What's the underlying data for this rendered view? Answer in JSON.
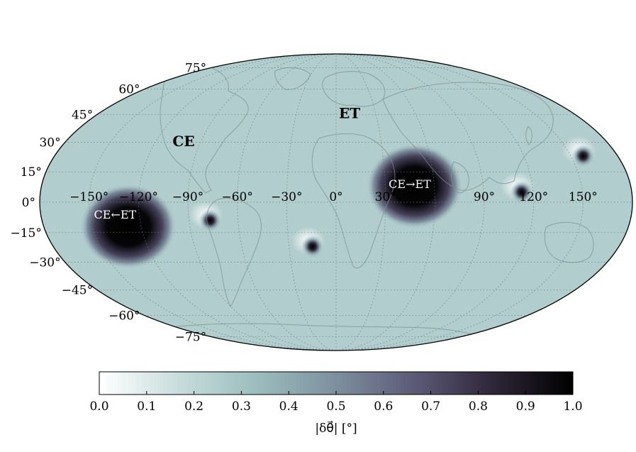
{
  "chart_data": {
    "type": "heatmap",
    "projection": "mollweide",
    "quantity_label": "|δθ⃗| [°]",
    "colormap": {
      "name": "bone_r",
      "stops": [
        "#ffffff",
        "#c8dcdc",
        "#9bbdbd",
        "#7d8f9e",
        "#5c5a78",
        "#2e2638",
        "#000000"
      ]
    },
    "colorbar": {
      "range": [
        0.0,
        1.0
      ],
      "ticks": [
        "0.0",
        "0.1",
        "0.2",
        "0.3",
        "0.4",
        "0.5",
        "0.6",
        "0.7",
        "0.8",
        "0.9",
        "1.0"
      ]
    },
    "lon_ticks": [
      {
        "value": -150,
        "label": "−150°"
      },
      {
        "value": -120,
        "label": "−120°"
      },
      {
        "value": -90,
        "label": "−90°"
      },
      {
        "value": -60,
        "label": "−60°"
      },
      {
        "value": -30,
        "label": "−30°"
      },
      {
        "value": 0,
        "label": "0°"
      },
      {
        "value": 30,
        "label": "30°"
      },
      {
        "value": 90,
        "label": "90°"
      },
      {
        "value": 120,
        "label": "120°"
      },
      {
        "value": 150,
        "label": "150°"
      }
    ],
    "lat_ticks": [
      {
        "value": 75,
        "label": "75°"
      },
      {
        "value": 60,
        "label": "60°"
      },
      {
        "value": 45,
        "label": "45°"
      },
      {
        "value": 30,
        "label": "30°"
      },
      {
        "value": 15,
        "label": "15°"
      },
      {
        "value": 0,
        "label": "0°"
      },
      {
        "value": -15,
        "label": "−15°"
      },
      {
        "value": -30,
        "label": "−30°"
      },
      {
        "value": -45,
        "label": "−45°"
      },
      {
        "value": -60,
        "label": "−60°"
      },
      {
        "value": -75,
        "label": "−75°"
      }
    ],
    "annotations": [
      {
        "text": "CE",
        "lon": -100,
        "lat": 28,
        "color": "#000000"
      },
      {
        "text": "ET",
        "lon": 10,
        "lat": 43,
        "color": "#000000"
      },
      {
        "text": "CE→ET",
        "lon": 45,
        "lat": 7,
        "color": "#ffffff"
      },
      {
        "text": "CE←ET",
        "lon": -135,
        "lat": -8,
        "color": "#ffffff"
      }
    ],
    "hotspots": [
      {
        "name": "CE←ET",
        "lon": -128,
        "lat": -12,
        "peak": 1.0
      },
      {
        "name": "CE→ET",
        "lon": 48,
        "lat": 8,
        "peak": 1.0
      },
      {
        "name": "pole-south-atlantic",
        "lon": -15,
        "lat": -22,
        "peak": 1.0
      },
      {
        "name": "pole-peru",
        "lon": -77,
        "lat": -9,
        "peak": 1.0
      },
      {
        "name": "pole-south-china-sea",
        "lon": 113,
        "lat": 5,
        "peak": 1.0
      },
      {
        "name": "pole-north-pacific",
        "lon": 158,
        "lat": 23,
        "peak": 1.0
      }
    ],
    "grid": true,
    "background_level": 0.25
  }
}
